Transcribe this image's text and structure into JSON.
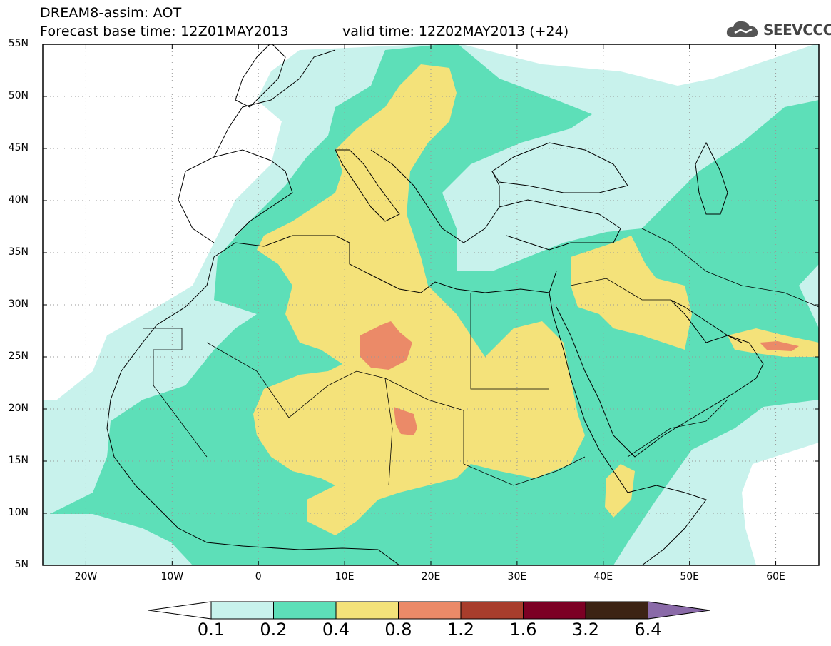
{
  "header": {
    "title": "DREAM8-assim: AOT",
    "base_time": "Forecast base time: 12Z01MAY2013",
    "valid_time": "valid time: 12Z02MAY2013 (+24)"
  },
  "logo": {
    "text": "SEEVCCC",
    "icon": "cloud-icon"
  },
  "map": {
    "lon_range": [
      -25,
      65
    ],
    "lat_range": [
      5,
      55
    ],
    "lat_labels": [
      "55N",
      "50N",
      "45N",
      "40N",
      "35N",
      "30N",
      "25N",
      "20N",
      "15N",
      "10N",
      "5N"
    ],
    "lon_labels": [
      "20W",
      "10W",
      "0",
      "10E",
      "20E",
      "30E",
      "40E",
      "50E",
      "60E"
    ],
    "grid": true
  },
  "colorbar": {
    "labels": [
      "0.1",
      "0.2",
      "0.4",
      "0.8",
      "1.2",
      "1.6",
      "3.2",
      "6.4"
    ],
    "colors": [
      "#c8f2ec",
      "#5ddfb8",
      "#f4e27a",
      "#eb8a68",
      "#a83d2c",
      "#7c0024",
      "#3c2314",
      "#8a6aa8"
    ]
  }
}
